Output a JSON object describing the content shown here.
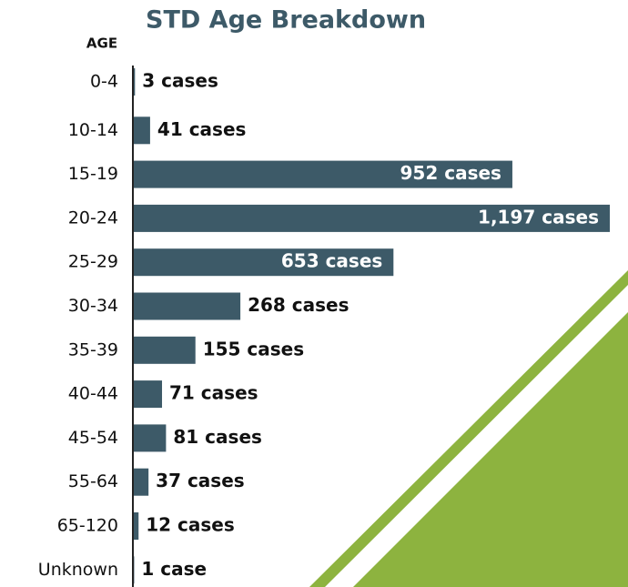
{
  "chart_data": {
    "type": "bar",
    "orientation": "horizontal",
    "title": "STD Age Breakdown",
    "y_label": "AGE",
    "categories": [
      "0-4",
      "10-14",
      "15-19",
      "20-24",
      "25-29",
      "30-34",
      "35-39",
      "40-44",
      "45-54",
      "55-64",
      "65-120",
      "Unknown"
    ],
    "values": [
      3,
      41,
      952,
      1197,
      653,
      268,
      155,
      71,
      81,
      37,
      12,
      1
    ],
    "value_labels": [
      "3 cases",
      "41 cases",
      "952 cases",
      "1,197 cases",
      "653 cases",
      "268 cases",
      "155 cases",
      "71 cases",
      "81 cases",
      "37 cases",
      "12 cases",
      "1 case"
    ],
    "color": "#3d5a68"
  }
}
